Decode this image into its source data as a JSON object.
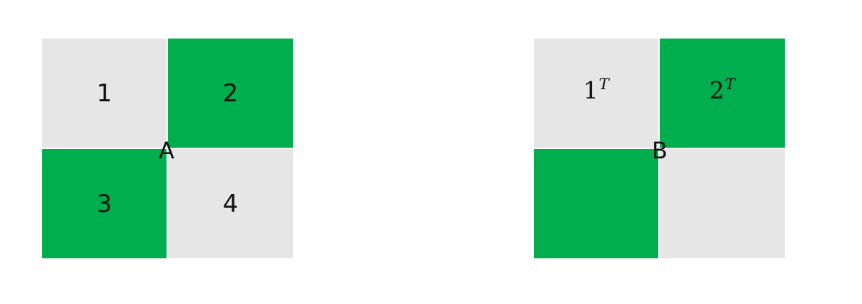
{
  "colors": {
    "light": "#e6e6e6",
    "green": "#00ae4e"
  },
  "matrix_a": {
    "label": "A",
    "cells": [
      {
        "text": "1",
        "color": "light"
      },
      {
        "text": "2",
        "color": "green"
      },
      {
        "text": "3",
        "color": "green"
      },
      {
        "text": "4",
        "color": "light"
      }
    ]
  },
  "matrix_b": {
    "label": "B",
    "cells": [
      {
        "text": "1",
        "sup": "T",
        "color": "light"
      },
      {
        "text": "2",
        "sup": "T",
        "color": "green"
      },
      {
        "text": "",
        "color": "green"
      },
      {
        "text": "",
        "color": "light"
      }
    ]
  }
}
